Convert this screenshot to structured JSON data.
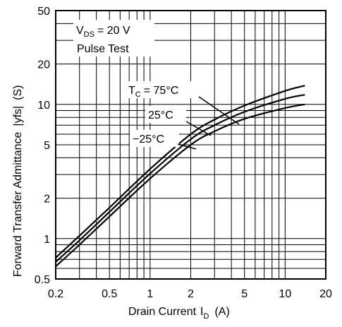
{
  "chart_data": {
    "type": "line",
    "xlabel": "Drain Current",
    "xlabel_symbol": "I",
    "xlabel_symbol_sub": "D",
    "xlabel_unit": "(A)",
    "ylabel": "Forward Transfer Admittance",
    "ylabel_symbol": "|yfs|",
    "ylabel_unit": "(S)",
    "x_scale": "log",
    "y_scale": "log",
    "xlim": [
      0.2,
      20
    ],
    "ylim": [
      0.5,
      50
    ],
    "grid": true,
    "x_ticks": [
      0.2,
      0.5,
      1,
      2,
      5,
      10,
      20
    ],
    "x_tick_labels": [
      "0.2",
      "0.5",
      "1",
      "2",
      "5",
      "10",
      "20"
    ],
    "y_ticks": [
      0.5,
      1,
      2,
      5,
      10,
      20,
      50
    ],
    "y_tick_labels": [
      "0.5",
      "1",
      "2",
      "5",
      "10",
      "20",
      "50"
    ],
    "conditions": {
      "vds_symbol": "V",
      "vds_sub": "DS",
      "vds_value": "= 20 V",
      "test": "Pulse Test"
    },
    "series": [
      {
        "name": "TC = 75°C",
        "label_prefix": "T",
        "label_sub": "C",
        "label_value": "= 75°C",
        "x": [
          0.2,
          0.3,
          0.5,
          1,
          2,
          3,
          5,
          10,
          14
        ],
        "y": [
          0.72,
          1.05,
          1.7,
          3.3,
          6.0,
          7.7,
          9.8,
          12.6,
          13.8
        ]
      },
      {
        "name": "25°C",
        "label_value": "25°C",
        "x": [
          0.2,
          0.3,
          0.5,
          1,
          2,
          3,
          5,
          10,
          14
        ],
        "y": [
          0.67,
          0.97,
          1.58,
          3.05,
          5.5,
          7.0,
          8.8,
          11.0,
          11.8
        ]
      },
      {
        "name": "−25°C",
        "label_value": "−25°C",
        "x": [
          0.2,
          0.3,
          0.5,
          1,
          2,
          3,
          5,
          10,
          14
        ],
        "y": [
          0.62,
          0.9,
          1.46,
          2.8,
          5.0,
          6.3,
          7.8,
          9.4,
          10.0
        ]
      }
    ]
  }
}
